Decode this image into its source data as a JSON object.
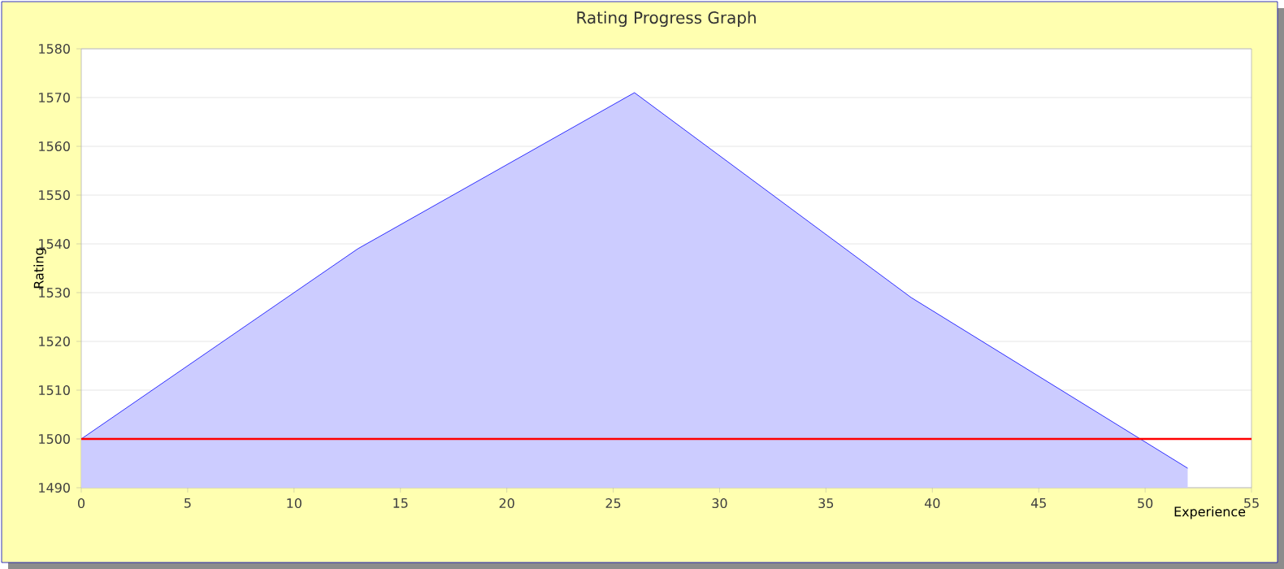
{
  "chart_data": {
    "type": "area",
    "title": "Rating Progress Graph",
    "xlabel": "Experience",
    "ylabel": "Rating",
    "x": [
      0,
      13,
      26,
      39,
      52
    ],
    "series": [
      {
        "color": "#0000ff",
        "values": [
          1500,
          1539,
          1571,
          1529,
          1494
        ]
      }
    ],
    "xlim": [
      0,
      55
    ],
    "xticks": [
      0,
      5,
      10,
      15,
      20,
      25,
      30,
      35,
      40,
      45,
      50,
      55
    ],
    "ylim": [
      1490,
      1580
    ],
    "yticks": [
      1490,
      1500,
      1510,
      1520,
      1530,
      1540,
      1550,
      1560,
      1570,
      1580
    ],
    "ref_lines": [
      {
        "axis": "y",
        "value": 1500,
        "color": "#ff0000"
      }
    ],
    "grid": "y",
    "marker": "none",
    "line_style": "solid"
  }
}
